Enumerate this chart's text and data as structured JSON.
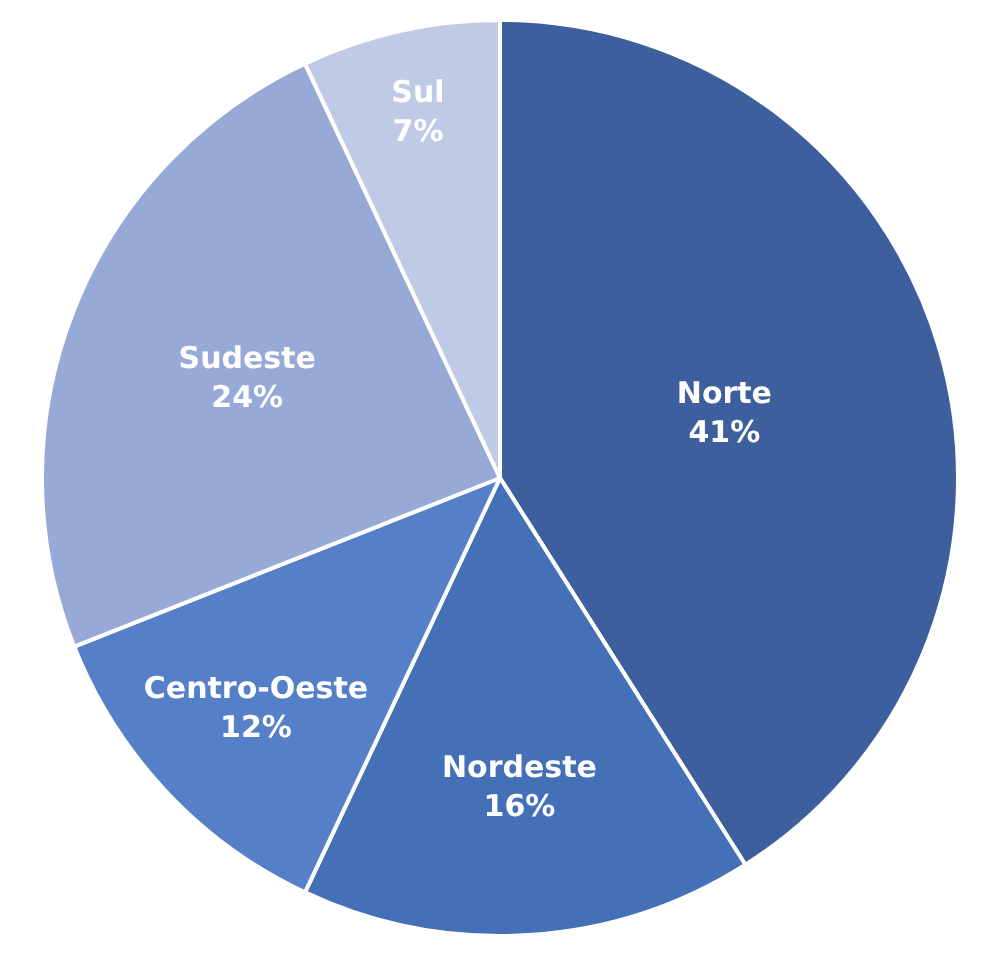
{
  "chart_data": {
    "type": "pie",
    "categories": [
      "Norte",
      "Nordeste",
      "Centro-Oeste",
      "Sudeste",
      "Sul"
    ],
    "values": [
      41,
      16,
      12,
      24,
      7
    ],
    "value_labels": [
      "41%",
      "16%",
      "12%",
      "24%",
      "7%"
    ],
    "colors": [
      "#3d5f9e",
      "#4470b8",
      "#5580c8",
      "#97a9d6",
      "#bfcbe6"
    ],
    "legend": false
  }
}
